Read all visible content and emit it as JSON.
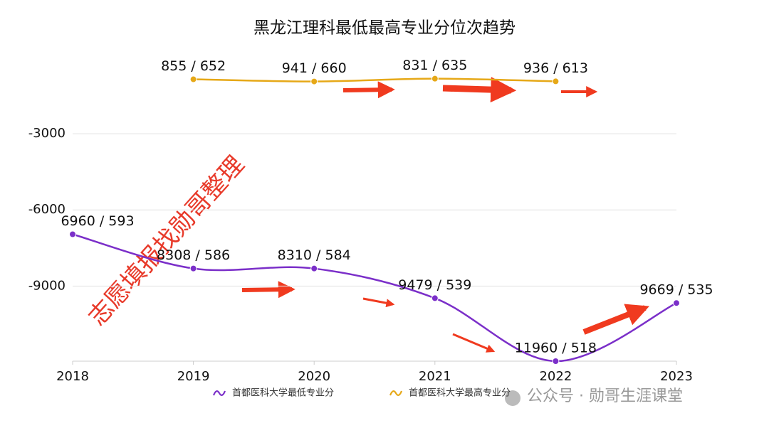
{
  "chart_data": {
    "type": "line",
    "title": "黑龙江理科最低最高专业分位次趋势",
    "categories": [
      "2018",
      "2019",
      "2020",
      "2021",
      "2022",
      "2023"
    ],
    "series": [
      {
        "name": "首都医科大学最低专业分",
        "color": "#7b2fc9",
        "values": [
          -6960,
          -8308,
          -8310,
          -9479,
          -11960,
          -9669
        ],
        "value_labels": [
          "6960 / 593",
          "8308 / 586",
          "8310 / 584",
          "9479 / 539",
          "11960 / 518",
          "9669 / 535"
        ]
      },
      {
        "name": "首都医科大学最高专业分",
        "color": "#e6a817",
        "values": [
          null,
          -855,
          -941,
          -831,
          -936,
          null
        ],
        "value_labels": [
          null,
          "855 / 652",
          "941 / 660",
          "831 / 635",
          "936 / 613",
          null
        ]
      }
    ],
    "ylim": [
      -11960,
      0
    ],
    "yticks": [
      -9000,
      -6000,
      -3000
    ],
    "grid": true,
    "legend": "bottom",
    "annotations": [
      "志愿填报找勋哥整理",
      "公众号 · 勋哥生涯课堂"
    ]
  }
}
